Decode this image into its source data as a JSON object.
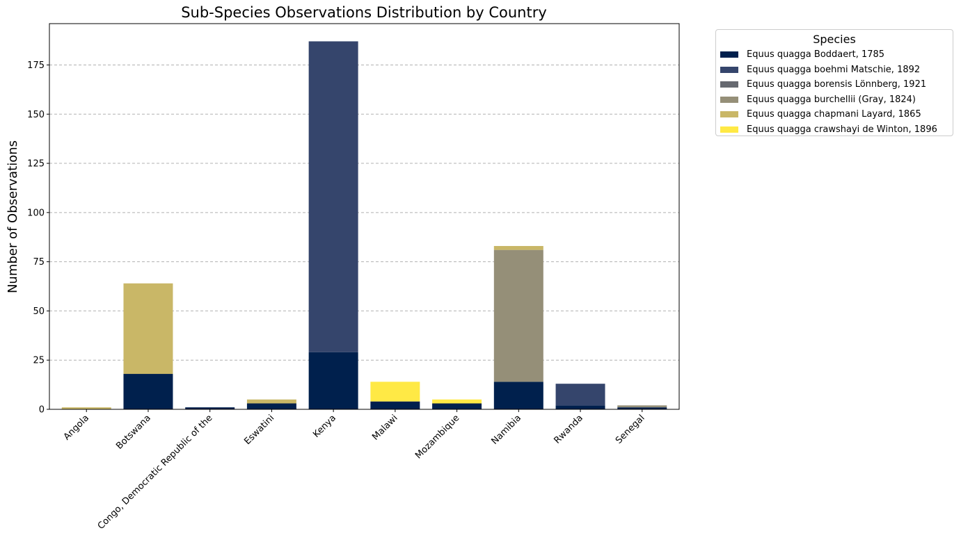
{
  "chart_data": {
    "type": "bar",
    "stacked": true,
    "title": "Sub-Species Observations Distribution by Country",
    "xlabel": "",
    "ylabel": "Number of Observations",
    "ylim": [
      0,
      196
    ],
    "yticks": [
      0,
      25,
      50,
      75,
      100,
      125,
      150,
      175
    ],
    "grid": "y-dashed",
    "legend_position": "outside-top-right",
    "legend_title": "Species",
    "categories": [
      "Angola",
      "Botswana",
      "Congo, Democratic Republic of the",
      "Eswatini",
      "Kenya",
      "Malawi",
      "Mozambique",
      "Namibia",
      "Rwanda",
      "Senegal"
    ],
    "series": [
      {
        "name": "Equus quagga Boddaert, 1785",
        "color": "#00204d",
        "values": [
          0,
          18,
          1,
          3,
          29,
          4,
          3,
          14,
          2,
          1
        ]
      },
      {
        "name": "Equus quagga boehmi Matschie, 1892",
        "color": "#35456c",
        "values": [
          0,
          0,
          0,
          0,
          158,
          0,
          0,
          0,
          11,
          0
        ]
      },
      {
        "name": "Equus quagga borensis Lönnberg, 1921",
        "color": "#666970",
        "values": [
          0,
          0,
          0,
          0,
          0,
          0,
          0,
          0,
          0,
          0
        ]
      },
      {
        "name": "Equus quagga burchellii (Gray, 1824)",
        "color": "#958f78",
        "values": [
          0,
          0,
          0,
          0,
          0,
          0,
          0,
          67,
          0,
          1
        ]
      },
      {
        "name": "Equus quagga chapmani Layard, 1865",
        "color": "#c9b767",
        "values": [
          1,
          46,
          0,
          2,
          0,
          0,
          0,
          2,
          0,
          0
        ]
      },
      {
        "name": "Equus quagga crawshayi de Winton, 1896",
        "color": "#ffe945",
        "values": [
          0,
          0,
          0,
          0,
          0,
          10,
          2,
          0,
          0,
          0
        ]
      }
    ]
  }
}
